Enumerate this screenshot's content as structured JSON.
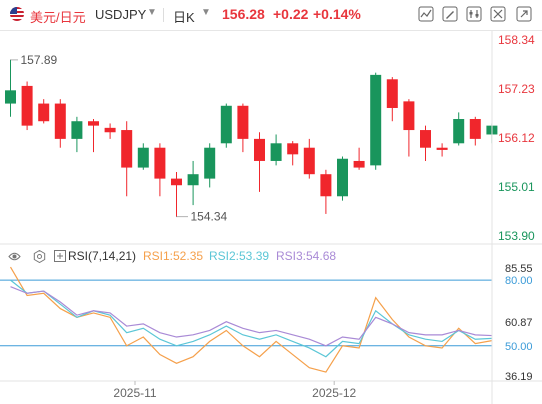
{
  "header": {
    "pair_name": "美元/日元",
    "symbol": "USDJPY",
    "period": "日K",
    "price": "156.28",
    "change": "+0.22",
    "change_pct": "+0.14%"
  },
  "rsi_header": {
    "title": "RSI(7,14,21)",
    "rsi1": "RSI1:52.35",
    "rsi2": "RSI2:53.39",
    "rsi3": "RSI3:54.68"
  },
  "colors": {
    "up": "#19955c",
    "down": "#f0262c",
    "rsi1": "#f5a04b",
    "rsi2": "#5bc6d6",
    "rsi3": "#a98ad6",
    "ref_line": "#3b9bd8",
    "axis_text_main": "#e8363d",
    "axis_text_low": "#19955c"
  },
  "chart_data": [
    {
      "type": "candlestick",
      "title": "",
      "y_ticks": [
        "158.34",
        "157.23",
        "156.12",
        "155.01",
        "153.90"
      ],
      "ylim": [
        153.9,
        158.34
      ],
      "x_ticks": [
        "2025-11",
        "2025-12"
      ],
      "annotations": [
        "157.89",
        "154.34"
      ],
      "grid": false,
      "candles": [
        {
          "o": 156.9,
          "c": 157.2,
          "h": 157.89,
          "l": 156.6
        },
        {
          "o": 157.3,
          "c": 156.4,
          "h": 157.4,
          "l": 156.3
        },
        {
          "o": 156.9,
          "c": 156.5,
          "h": 157.0,
          "l": 156.45
        },
        {
          "o": 156.9,
          "c": 156.1,
          "h": 157.0,
          "l": 155.9
        },
        {
          "o": 156.1,
          "c": 156.5,
          "h": 156.6,
          "l": 155.8
        },
        {
          "o": 156.5,
          "c": 156.4,
          "h": 156.55,
          "l": 155.8
        },
        {
          "o": 156.35,
          "c": 156.25,
          "h": 156.45,
          "l": 156.1
        },
        {
          "o": 156.3,
          "c": 155.45,
          "h": 156.5,
          "l": 154.8
        },
        {
          "o": 155.45,
          "c": 155.9,
          "h": 156.0,
          "l": 155.4
        },
        {
          "o": 155.9,
          "c": 155.2,
          "h": 156.0,
          "l": 154.8
        },
        {
          "o": 155.2,
          "c": 155.05,
          "h": 155.35,
          "l": 154.34
        },
        {
          "o": 155.05,
          "c": 155.3,
          "h": 155.6,
          "l": 154.6
        },
        {
          "o": 155.2,
          "c": 155.9,
          "h": 156.0,
          "l": 155.0
        },
        {
          "o": 156.0,
          "c": 156.85,
          "h": 156.9,
          "l": 155.9
        },
        {
          "o": 156.85,
          "c": 156.1,
          "h": 156.9,
          "l": 155.8
        },
        {
          "o": 156.1,
          "c": 155.6,
          "h": 156.25,
          "l": 154.9
        },
        {
          "o": 155.6,
          "c": 156.0,
          "h": 156.2,
          "l": 155.5
        },
        {
          "o": 156.0,
          "c": 155.75,
          "h": 156.05,
          "l": 155.5
        },
        {
          "o": 155.9,
          "c": 155.3,
          "h": 156.1,
          "l": 155.2
        },
        {
          "o": 155.3,
          "c": 154.8,
          "h": 155.4,
          "l": 154.4
        },
        {
          "o": 154.8,
          "c": 155.65,
          "h": 155.7,
          "l": 154.7
        },
        {
          "o": 155.6,
          "c": 155.45,
          "h": 155.9,
          "l": 155.4
        },
        {
          "o": 155.5,
          "c": 157.55,
          "h": 157.6,
          "l": 155.4
        },
        {
          "o": 157.45,
          "c": 156.8,
          "h": 157.5,
          "l": 156.5
        },
        {
          "o": 156.95,
          "c": 156.3,
          "h": 157.0,
          "l": 155.7
        },
        {
          "o": 156.3,
          "c": 155.9,
          "h": 156.4,
          "l": 155.6
        },
        {
          "o": 155.9,
          "c": 155.85,
          "h": 156.0,
          "l": 155.7
        },
        {
          "o": 156.0,
          "c": 156.55,
          "h": 156.7,
          "l": 155.95
        },
        {
          "o": 156.55,
          "c": 156.1,
          "h": 156.6,
          "l": 155.95
        },
        {
          "o": 156.2,
          "c": 156.4,
          "h": 156.45,
          "l": 156.0
        }
      ]
    },
    {
      "type": "line",
      "title": "RSI(7,14,21)",
      "y_ticks": [
        "85.55",
        "80.00",
        "60.87",
        "50.00",
        "36.19"
      ],
      "ylim": [
        36.19,
        85.55
      ],
      "reference_lines": [
        80,
        50
      ],
      "x_ticks": [
        "2025-11",
        "2025-12"
      ],
      "series": [
        {
          "name": "RSI1",
          "values": [
            86,
            73,
            74,
            67,
            63,
            65,
            63,
            50,
            54,
            46,
            42,
            45,
            52,
            57,
            50,
            45,
            52,
            46,
            40,
            38,
            50,
            49,
            72,
            62,
            54,
            50,
            49,
            58,
            51,
            52.35
          ]
        },
        {
          "name": "RSI2",
          "values": [
            80,
            74,
            75,
            69,
            63,
            66,
            64,
            56,
            58,
            53,
            50,
            52,
            55,
            59,
            55,
            53,
            55,
            52,
            49,
            45,
            52,
            51,
            66,
            60,
            55,
            53,
            52,
            57,
            53,
            53.39
          ]
        },
        {
          "name": "RSI3",
          "values": [
            77,
            74,
            75,
            70,
            64,
            66,
            65,
            59,
            60,
            56,
            54,
            55,
            57,
            61,
            58,
            56,
            57,
            55,
            53,
            50,
            54,
            53,
            63,
            60,
            56,
            55,
            55,
            57,
            55,
            54.68
          ]
        }
      ]
    }
  ]
}
